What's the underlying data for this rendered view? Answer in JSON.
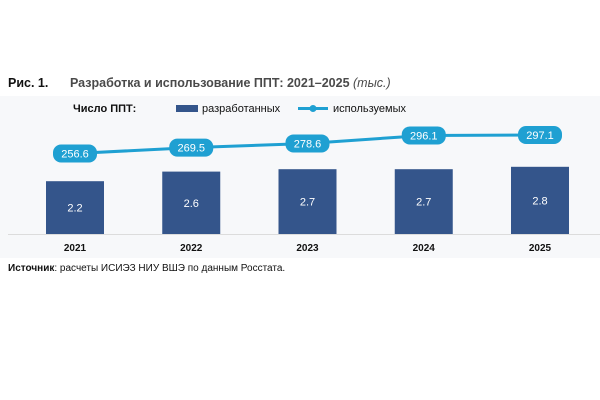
{
  "figure": {
    "number": "Рис. 1.",
    "title": "Разработка и использование ППТ: 2021–2025",
    "unit": "(тыс.)"
  },
  "legend": {
    "title": "Число ППТ:",
    "developed": "разработанных",
    "used": "используемых"
  },
  "source": {
    "label": "Источник",
    "text": ": расчеты ИСИЭЗ НИУ ВШЭ по данным Росстата."
  },
  "colors": {
    "bar": "#34558b",
    "line": "#1fa0d2",
    "grid": "#dcdcdc"
  },
  "chart_data": {
    "type": "bar",
    "categories": [
      "2021",
      "2022",
      "2023",
      "2024",
      "2025"
    ],
    "series": [
      {
        "name": "разработанных",
        "type": "bar",
        "values": [
          2.2,
          2.6,
          2.7,
          2.7,
          2.8
        ]
      },
      {
        "name": "используемых",
        "type": "line",
        "values": [
          256.6,
          269.5,
          278.6,
          296.1,
          297.1
        ]
      }
    ],
    "title": "Разработка и использование ППТ: 2021–2025",
    "unit": "(тыс.)",
    "legend_position": "top-left"
  }
}
